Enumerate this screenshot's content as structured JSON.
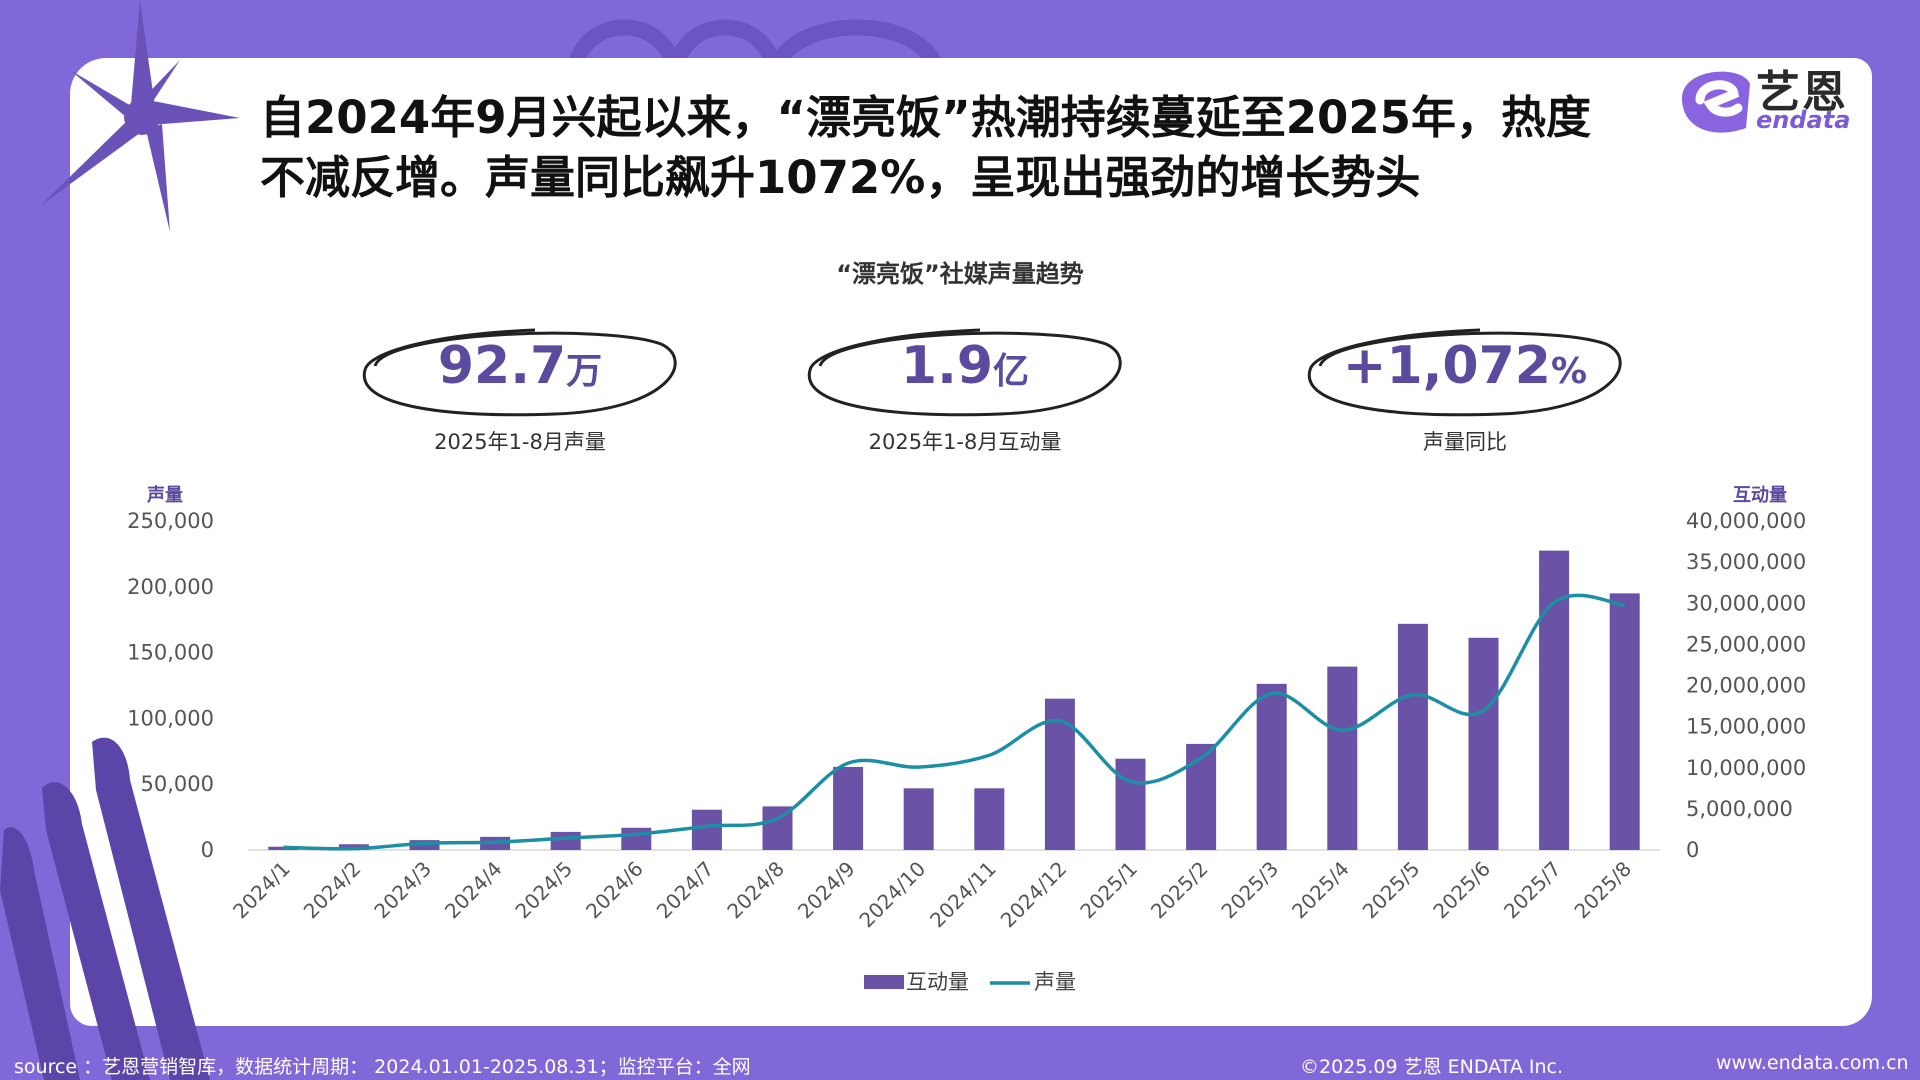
{
  "headline_line1": "自2024年9月兴起以来，“漂亮饭”热潮持续蔓延至2025年，热度",
  "headline_line2": "不减反增。声量同比飙升1072%，呈现出强劲的增长势头",
  "logo": {
    "cn": "艺恩",
    "en": "endata"
  },
  "colors": {
    "background": "#8168d8",
    "bar": "#6a52a6",
    "line": "#1d8fa5",
    "kpi": "#5c4a9e"
  },
  "kpis": [
    {
      "value": "92.7",
      "unit": "万",
      "label": "2025年1-8月声量"
    },
    {
      "value": "1.9",
      "unit": "亿",
      "label": "2025年1-8月互动量"
    },
    {
      "value": "+1,072",
      "unit": "%",
      "label": "声量同比"
    }
  ],
  "chart_data": {
    "type": "bar",
    "title": "“漂亮饭”社媒声量趋势",
    "left_axis_label": "声量",
    "right_axis_label": "互动量",
    "left_ticks": [
      "250,000",
      "200,000",
      "150,000",
      "100,000",
      "50,000",
      "0"
    ],
    "right_ticks": [
      "40,000,000",
      "35,000,000",
      "30,000,000",
      "25,000,000",
      "20,000,000",
      "15,000,000",
      "10,000,000",
      "5,000,000",
      "0"
    ],
    "left_range": [
      0,
      250000
    ],
    "right_range": [
      0,
      40000000
    ],
    "categories": [
      "2024/1",
      "2024/2",
      "2024/3",
      "2024/4",
      "2024/5",
      "2024/6",
      "2024/7",
      "2024/8",
      "2024/9",
      "2024/10",
      "2024/11",
      "2024/12",
      "2025/1",
      "2025/2",
      "2025/3",
      "2025/4",
      "2025/5",
      "2025/6",
      "2025/7",
      "2025/8"
    ],
    "series": [
      {
        "name": "互动量",
        "kind": "bar",
        "axis": "right",
        "values": [
          400000,
          700000,
          1200000,
          1600000,
          2200000,
          2700000,
          4900000,
          5300000,
          10100000,
          7500000,
          7500000,
          18400000,
          11100000,
          12900000,
          20200000,
          22300000,
          27500000,
          25800000,
          36400000,
          31200000
        ]
      },
      {
        "name": "声量",
        "kind": "line",
        "axis": "left",
        "values": [
          2000,
          1000,
          5000,
          6000,
          9000,
          12000,
          18000,
          24000,
          66000,
          63000,
          72000,
          98000,
          52000,
          70000,
          119000,
          91000,
          118000,
          106000,
          188000,
          186000
        ]
      }
    ],
    "legend_position": "bottom",
    "grid": false
  },
  "footer": {
    "source": "source ：艺恩营销智库，数据统计周期： 2024.01.01-2025.08.31；监控平台：全网",
    "copyright": "©2025.09  艺恩 ENDATA Inc.",
    "website": "www.endata.com.cn"
  }
}
